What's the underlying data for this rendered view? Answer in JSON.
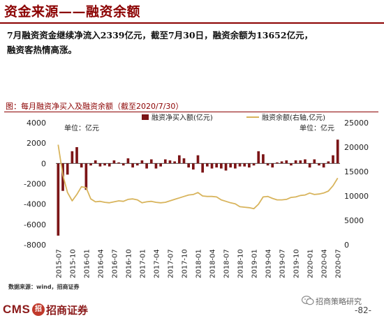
{
  "header": {
    "title": "资金来源——融资余额"
  },
  "summary": {
    "line1": "7月融资资金继续净流入2339亿元，截至7月30日，融资余额为13652亿元，",
    "line2": "融资客热情高涨。"
  },
  "chart_title": "图：每月融资净买入及融资余额（截至2020/7/30）",
  "source": "数据来源：wind，招商证券",
  "footer": {
    "logo_text": "CMS",
    "logo_mark": "招",
    "logo_cn": "招商证券",
    "wechat_name": "招商策略研究",
    "page": "-82-"
  },
  "colors": {
    "bar": "#7b1416",
    "line": "#d8b45c",
    "accent": "#8b0000"
  },
  "chart_data": {
    "type": "bar+line",
    "x": [
      "2015-07",
      "2015-08",
      "2015-09",
      "2015-10",
      "2015-11",
      "2015-12",
      "2016-01",
      "2016-02",
      "2016-03",
      "2016-04",
      "2016-05",
      "2016-06",
      "2016-07",
      "2016-08",
      "2016-09",
      "2016-10",
      "2016-11",
      "2016-12",
      "2017-01",
      "2017-02",
      "2017-03",
      "2017-04",
      "2017-05",
      "2017-06",
      "2017-07",
      "2017-08",
      "2017-09",
      "2017-10",
      "2017-11",
      "2017-12",
      "2018-01",
      "2018-02",
      "2018-03",
      "2018-04",
      "2018-05",
      "2018-06",
      "2018-07",
      "2018-08",
      "2018-09",
      "2018-10",
      "2018-11",
      "2018-12",
      "2019-01",
      "2019-02",
      "2019-03",
      "2019-04",
      "2019-05",
      "2019-06",
      "2019-07",
      "2019-08",
      "2019-09",
      "2019-10",
      "2019-11",
      "2019-12",
      "2020-01",
      "2020-02",
      "2020-03",
      "2020-04",
      "2020-05",
      "2020-06",
      "2020-07"
    ],
    "xticks": [
      "2015-07",
      "2015-10",
      "2016-01",
      "2016-04",
      "2016-07",
      "2016-10",
      "2017-01",
      "2017-04",
      "2017-07",
      "2017-10",
      "2018-01",
      "2018-04",
      "2018-07",
      "2018-10",
      "2019-01",
      "2019-04",
      "2019-07",
      "2019-10",
      "2020-01",
      "2020-04",
      "2020-07"
    ],
    "series": [
      {
        "name": "融资净买入额(亿元)",
        "axis": "left",
        "type": "bar",
        "values": [
          -7100,
          -2700,
          -1100,
          1200,
          1600,
          -400,
          -2600,
          -200,
          300,
          -300,
          -200,
          -300,
          300,
          100,
          -200,
          500,
          -400,
          -200,
          300,
          -500,
          400,
          -500,
          -300,
          400,
          300,
          200,
          800,
          500,
          -400,
          -600,
          800,
          -900,
          -300,
          -500,
          -400,
          -500,
          -700,
          -400,
          -500,
          -300,
          -300,
          -400,
          -200,
          1200,
          900,
          -200,
          -400,
          100,
          200,
          300,
          -200,
          300,
          300,
          400,
          -400,
          400,
          -200,
          -400,
          200,
          800,
          2339
        ]
      },
      {
        "name": "融资余额(右轴,亿元)",
        "axis": "right",
        "type": "line",
        "values": [
          20500,
          14300,
          10700,
          9000,
          10300,
          11900,
          11700,
          9400,
          8800,
          8900,
          8700,
          8600,
          8800,
          9000,
          8900,
          9300,
          9400,
          9200,
          8600,
          8800,
          8900,
          8700,
          8600,
          8700,
          9000,
          9300,
          9600,
          9900,
          10200,
          10300,
          10700,
          10000,
          9900,
          9900,
          9800,
          9200,
          8900,
          8600,
          8400,
          7800,
          7700,
          7600,
          7400,
          8300,
          9800,
          9900,
          9500,
          9200,
          9200,
          9300,
          9700,
          9800,
          10100,
          10200,
          10600,
          10300,
          10400,
          10600,
          11000,
          12100,
          13652
        ]
      }
    ],
    "ylim_left": [
      -8000,
      4000
    ],
    "yticks_left": [
      -8000,
      -6000,
      -4000,
      -2000,
      0,
      2000,
      4000
    ],
    "ylim_right": [
      0,
      25000
    ],
    "yticks_right": [
      0,
      5000,
      10000,
      15000,
      20000,
      25000
    ],
    "left_unit": "单位：亿元",
    "right_unit": "单位：亿元",
    "legend_position": "top"
  }
}
